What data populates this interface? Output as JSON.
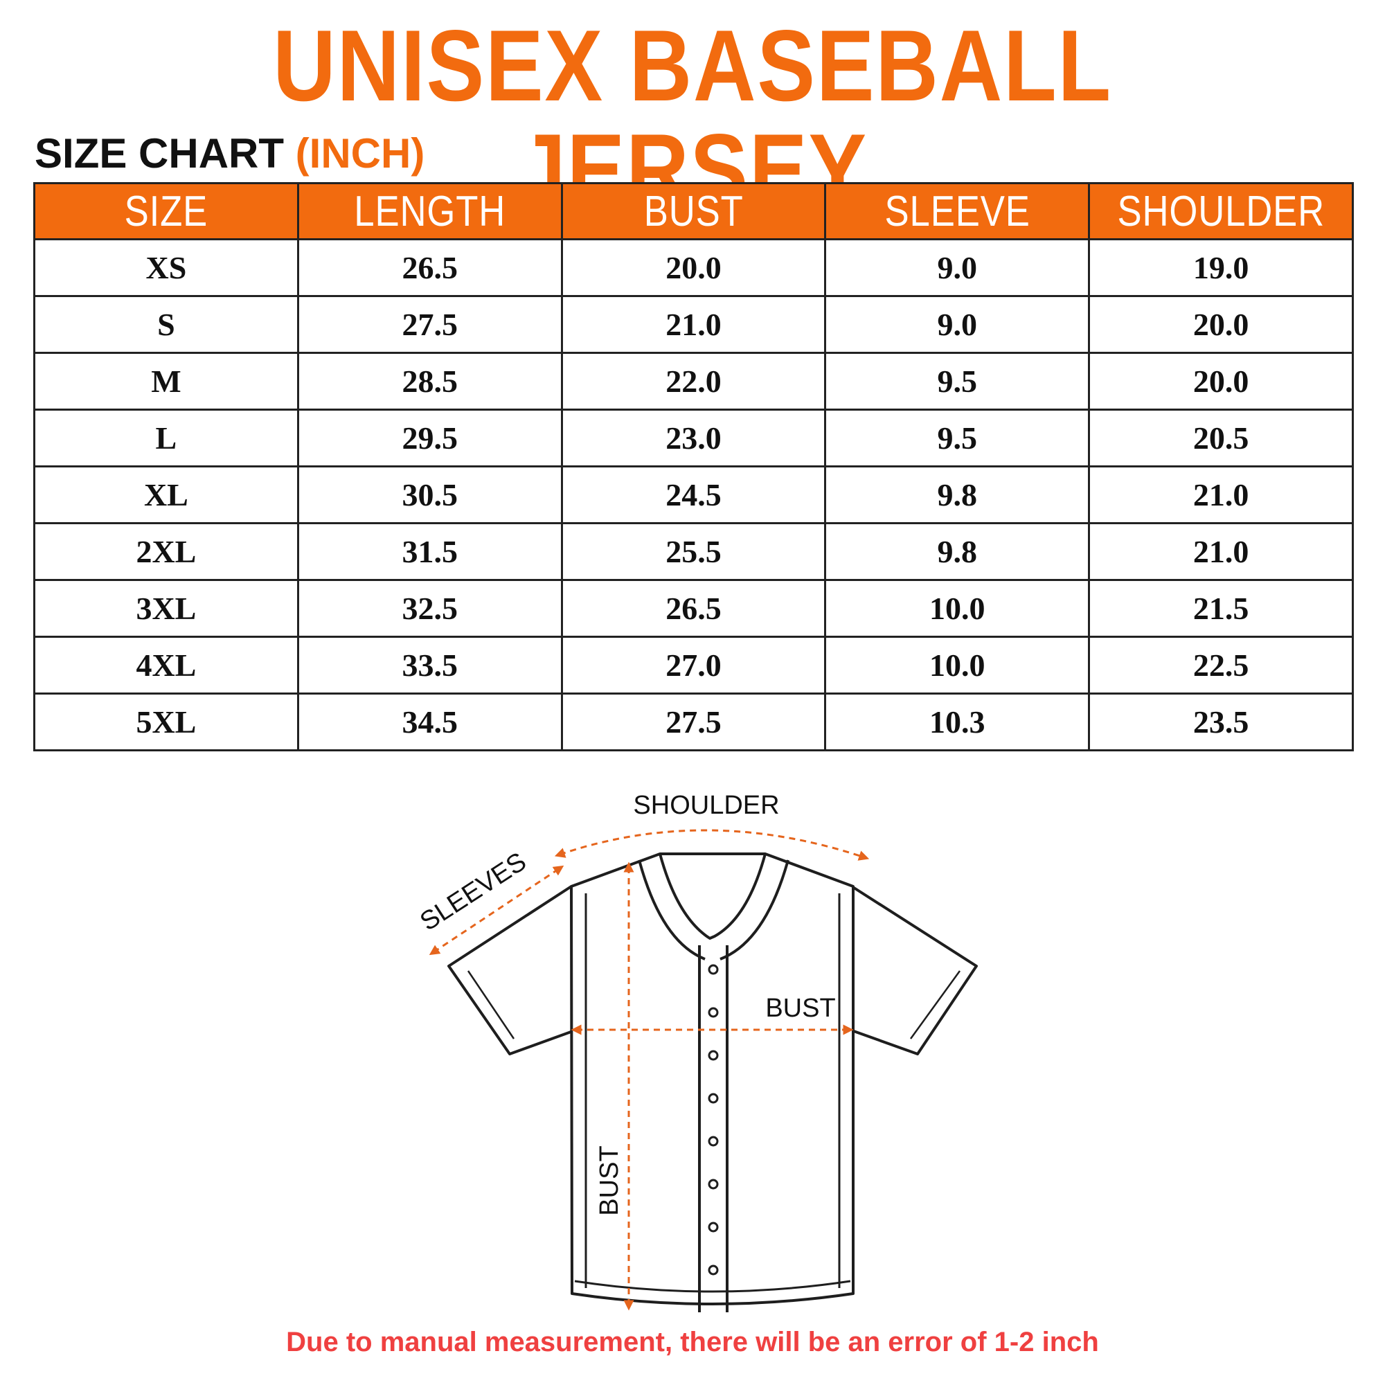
{
  "title": "UNISEX BASEBALL JERSEY",
  "subtitle": {
    "main": "SIZE CHART",
    "unit": "(INCH)"
  },
  "table": {
    "headers": [
      "SIZE",
      "LENGTH",
      "BUST",
      "SLEEVE",
      "SHOULDER"
    ],
    "rows": [
      [
        "XS",
        "26.5",
        "20.0",
        "9.0",
        "19.0"
      ],
      [
        "S",
        "27.5",
        "21.0",
        "9.0",
        "20.0"
      ],
      [
        "M",
        "28.5",
        "22.0",
        "9.5",
        "20.0"
      ],
      [
        "L",
        "29.5",
        "23.0",
        "9.5",
        "20.5"
      ],
      [
        "XL",
        "30.5",
        "24.5",
        "9.8",
        "21.0"
      ],
      [
        "2XL",
        "31.5",
        "25.5",
        "9.8",
        "21.0"
      ],
      [
        "3XL",
        "32.5",
        "26.5",
        "10.0",
        "21.5"
      ],
      [
        "4XL",
        "33.5",
        "27.0",
        "10.0",
        "22.5"
      ],
      [
        "5XL",
        "34.5",
        "27.5",
        "10.3",
        "23.5"
      ]
    ]
  },
  "diagram": {
    "labels": {
      "shoulder": "SHOULDER",
      "sleeves": "SLEEVES",
      "bust_horizontal": "BUST",
      "bust_vertical": "BUST"
    }
  },
  "note": "Due to manual measurement, there will be an error of 1-2 inch",
  "colors": {
    "accent": "#f26b0f",
    "note": "#ef4040",
    "outline": "#222222"
  }
}
